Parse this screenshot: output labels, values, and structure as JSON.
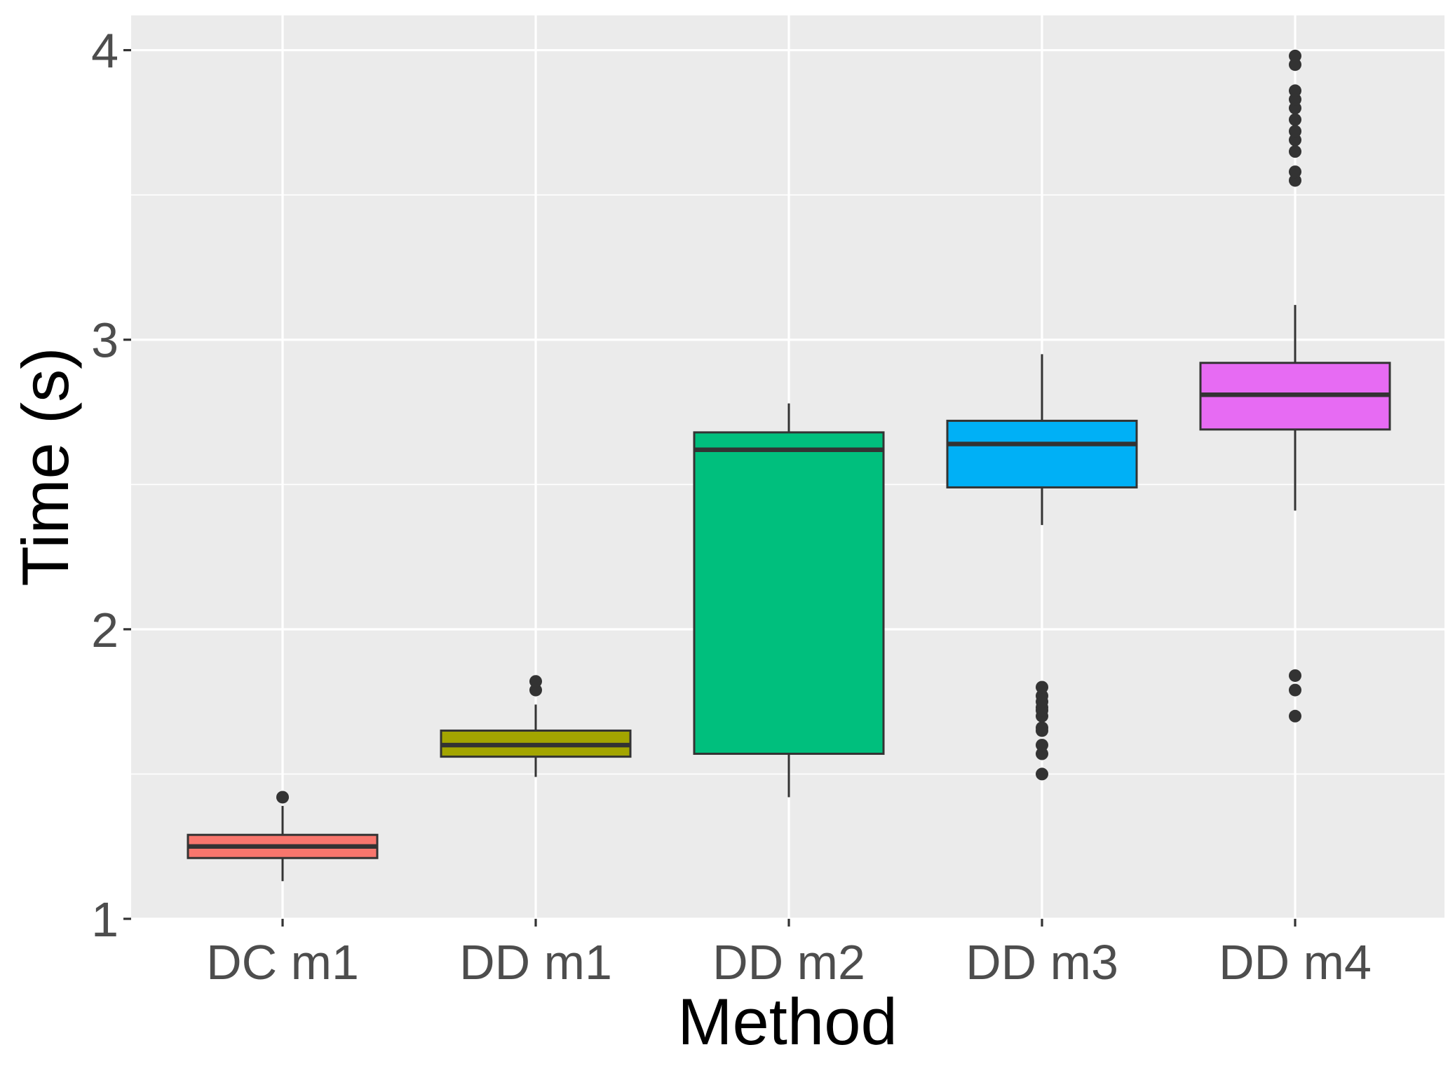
{
  "chart_data": {
    "type": "boxplot",
    "xlabel": "Method",
    "ylabel": "Time (s)",
    "ylim": [
      1,
      4.12
    ],
    "y_ticks": [
      1,
      2,
      3,
      4
    ],
    "y_tick_labels": [
      "1",
      "2",
      "3",
      "4"
    ],
    "grid": true,
    "legend": "none",
    "categories": [
      "DC m1",
      "DD m1",
      "DD m2",
      "DD m3",
      "DD m4"
    ],
    "boxes": [
      {
        "category": "DC m1",
        "color": "#F8766D",
        "whisker_low": 1.13,
        "q1": 1.21,
        "median": 1.25,
        "q3": 1.29,
        "whisker_high": 1.39,
        "outliers": [
          1.42
        ]
      },
      {
        "category": "DD m1",
        "color": "#A3A500",
        "whisker_low": 1.49,
        "q1": 1.56,
        "median": 1.6,
        "q3": 1.65,
        "whisker_high": 1.74,
        "outliers": [
          1.79,
          1.82
        ]
      },
      {
        "category": "DD m2",
        "color": "#00BF7D",
        "whisker_low": 1.42,
        "q1": 1.57,
        "median": 2.62,
        "q3": 2.68,
        "whisker_high": 2.78,
        "outliers": []
      },
      {
        "category": "DD m3",
        "color": "#00B0F6",
        "whisker_low": 2.36,
        "q1": 2.49,
        "median": 2.64,
        "q3": 2.72,
        "whisker_high": 2.95,
        "outliers": [
          1.5,
          1.57,
          1.6,
          1.65,
          1.66,
          1.7,
          1.72,
          1.73,
          1.75,
          1.77,
          1.8
        ]
      },
      {
        "category": "DD m4",
        "color": "#E76BF3",
        "whisker_low": 2.41,
        "q1": 2.69,
        "median": 2.81,
        "q3": 2.92,
        "whisker_high": 3.12,
        "outliers": [
          1.7,
          1.79,
          1.84,
          3.55,
          3.58,
          3.65,
          3.69,
          3.72,
          3.76,
          3.8,
          3.83,
          3.86,
          3.95,
          3.98
        ]
      }
    ],
    "panel_background": "#EBEBEB",
    "grid_color": "#FFFFFF",
    "box_outline_color": "#333333"
  }
}
